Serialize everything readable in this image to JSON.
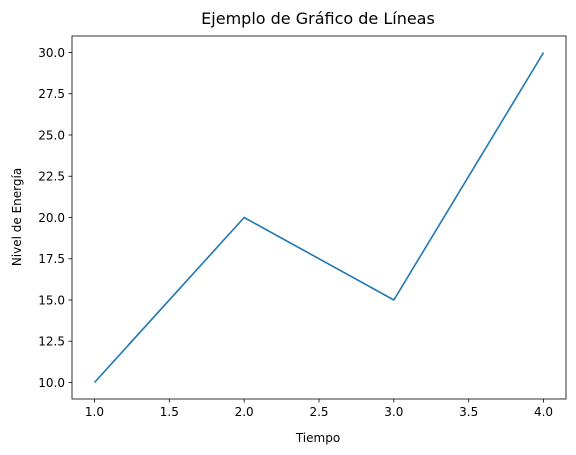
{
  "chart_data": {
    "type": "line",
    "title": "Ejemplo de Gráfico de Líneas",
    "xlabel": "Tiempo",
    "ylabel": "Nivel de Energía",
    "x": [
      1.0,
      2.0,
      3.0,
      4.0
    ],
    "series": [
      {
        "values": [
          10,
          20,
          15,
          30
        ],
        "color": "#1f77b4"
      }
    ],
    "xlim": [
      0.85,
      4.15
    ],
    "ylim": [
      9.0,
      31.0
    ],
    "xticks": [
      "1.0",
      "1.5",
      "2.0",
      "2.5",
      "3.0",
      "3.5",
      "4.0"
    ],
    "yticks": [
      "10.0",
      "12.5",
      "15.0",
      "17.5",
      "20.0",
      "22.5",
      "25.0",
      "27.5",
      "30.0"
    ],
    "grid": false,
    "legend": "none"
  }
}
